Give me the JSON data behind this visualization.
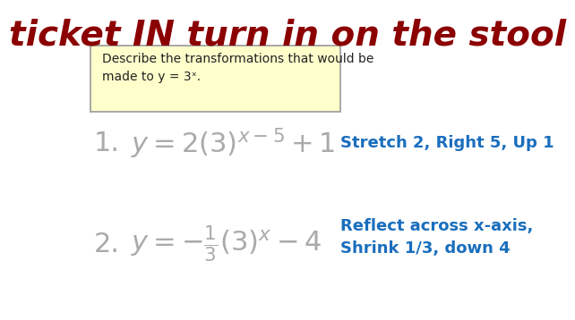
{
  "title": "ticket IN turn in on the stool",
  "title_color": "#8B0000",
  "title_fontsize": 28,
  "title_style": "italic",
  "title_weight": "bold",
  "bg_color": "#ffffff",
  "box_text_line1": "Describe the transformations that would be",
  "box_text_line2": "made to y = 3ˣ.",
  "box_bg": "#FFFFCC",
  "box_edge": "#999999",
  "eq1_number": "1.",
  "eq1_desc": "Stretch 2, Right 5, Up 1",
  "eq2_number": "2.",
  "eq2_desc_line1": "Reflect across x-axis,",
  "eq2_desc_line2": "Shrink 1/3, down 4",
  "number_color": "#aaaaaa",
  "eq_color": "#aaaaaa",
  "desc_color": "#1a6ebd",
  "desc_fontsize": 13,
  "eq_fontsize": 22,
  "number_fontsize": 22
}
